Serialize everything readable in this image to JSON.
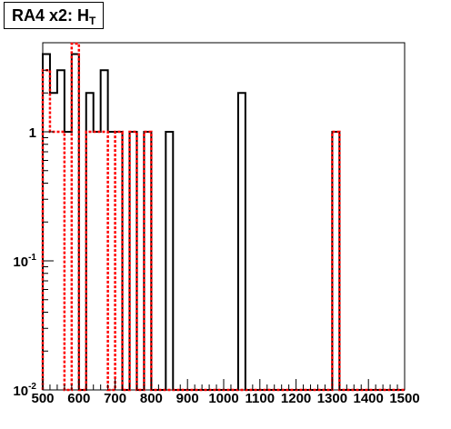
{
  "title": {
    "main": "RA4 x2: H",
    "subscript": "T"
  },
  "chart_data": {
    "type": "histogram",
    "title": "RA4 x2: H_T",
    "xlim": [
      500,
      1500
    ],
    "ylim": [
      0.01,
      5
    ],
    "y_scale": "log",
    "bin_width": 20,
    "grid": false,
    "x_ticks": [
      500,
      600,
      700,
      800,
      900,
      1000,
      1100,
      1200,
      1300,
      1400,
      1500
    ],
    "x_tick_labels": [
      "500",
      "600",
      "700",
      "800",
      "900",
      "1000",
      "1100",
      "1200",
      "1300",
      "1400",
      "1500"
    ],
    "y_ticks": [
      {
        "value": 1,
        "mantissa": "1",
        "exponent": ""
      },
      {
        "value": 0.1,
        "mantissa": "10",
        "exponent": "-1"
      },
      {
        "value": 0.01,
        "mantissa": "10",
        "exponent": "-2"
      }
    ],
    "series": [
      {
        "style": "solid",
        "color": "#000000",
        "bins": [
          [
            500,
            4
          ],
          [
            520,
            2
          ],
          [
            540,
            3
          ],
          [
            560,
            1
          ],
          [
            580,
            4
          ],
          [
            620,
            2
          ],
          [
            640,
            1
          ],
          [
            660,
            3
          ],
          [
            680,
            1
          ],
          [
            700,
            1
          ],
          [
            740,
            1
          ],
          [
            780,
            1
          ],
          [
            840,
            1
          ],
          [
            1040,
            2
          ],
          [
            1300,
            1
          ]
        ]
      },
      {
        "style": "dashed",
        "color": "#ff0000",
        "bins": [
          [
            500,
            3
          ],
          [
            520,
            1
          ],
          [
            540,
            1
          ],
          [
            580,
            5
          ],
          [
            620,
            1
          ],
          [
            640,
            1
          ],
          [
            660,
            1
          ],
          [
            700,
            1
          ],
          [
            740,
            1
          ],
          [
            780,
            1
          ],
          [
            1300,
            1
          ]
        ]
      }
    ]
  }
}
